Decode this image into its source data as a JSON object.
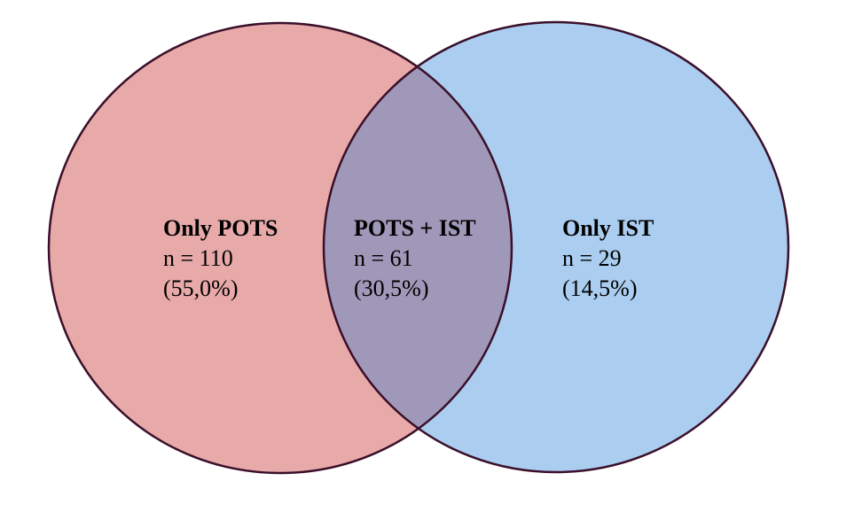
{
  "regions": [
    {
      "title": "Only POTS",
      "count": "n = 110",
      "percent": "(55,0%)"
    },
    {
      "title": "POTS + IST",
      "count": "n = 61",
      "percent": "(30,5%)"
    },
    {
      "title": "Only IST",
      "count": "n = 29",
      "percent": "(14,5%)"
    }
  ]
}
